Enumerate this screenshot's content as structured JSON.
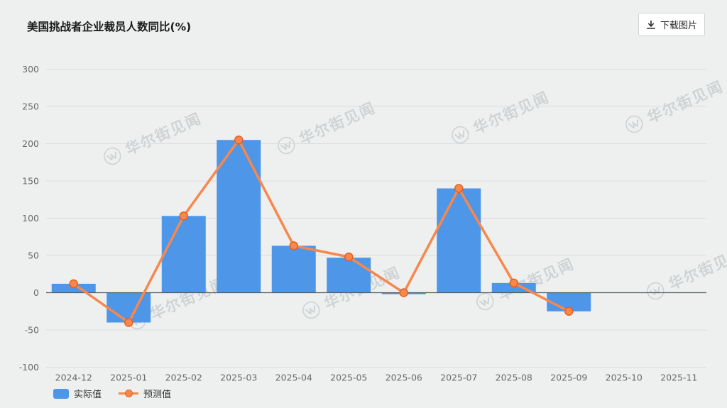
{
  "header": {
    "title": "美国挑战者企业裁员人数同比(%)",
    "download_label": "下载图片"
  },
  "watermark": {
    "text": "华尔街见闻"
  },
  "legend": [
    {
      "label": "实际值",
      "color": "#4d96e8",
      "marker": "bar"
    },
    {
      "label": "预测值",
      "color": "#f7884d",
      "marker": "line-dot"
    }
  ],
  "colors": {
    "background": "#eef0f0",
    "grid": "#d9dcde",
    "axis_line": "#565b5e",
    "axis_text": "#676a6c",
    "bar": "#4d96e8",
    "line": "#f7884d",
    "point_stroke": "#e4601e"
  },
  "chart_data": {
    "type": "bar",
    "title": "美国挑战者企业裁员人数同比(%)",
    "xlabel": "",
    "ylabel": "",
    "categories": [
      "2024-12",
      "2025-01",
      "2025-02",
      "2025-03",
      "2025-04",
      "2025-05",
      "2025-06",
      "2025-07",
      "2025-08",
      "2025-09",
      "2025-10",
      "2025-11"
    ],
    "series": [
      {
        "name": "实际值",
        "type": "bar",
        "color": "#4d96e8",
        "values": [
          12,
          -40,
          103,
          205,
          63,
          47,
          -2,
          140,
          13,
          -25,
          null,
          null
        ]
      },
      {
        "name": "预测值",
        "type": "line",
        "color": "#f7884d",
        "values": [
          12,
          -40,
          103,
          205,
          63,
          48,
          0,
          140,
          13,
          -25,
          null,
          null
        ]
      }
    ],
    "ylim": [
      -100,
      300
    ],
    "yticks": [
      -100,
      -50,
      0,
      50,
      100,
      150,
      200,
      250,
      300
    ],
    "grid": true,
    "legend_position": "bottom-left",
    "legend_entries": [
      "实际值",
      "预测值"
    ]
  }
}
